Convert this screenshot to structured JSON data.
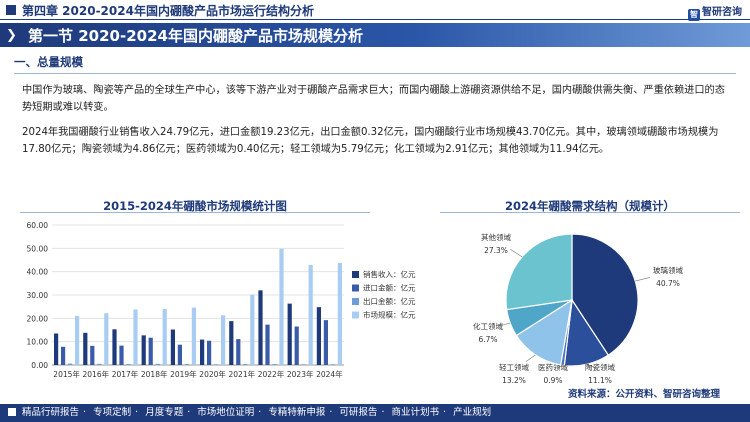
{
  "header": {
    "chapter_title": "第四章  2020-2024年国内硼酸产品市场运行结构分析",
    "logo_text": "智研咨询",
    "logo_mark": "智"
  },
  "section": {
    "title": "第一节 2020-2024年国内硼酸产品市场规模分析",
    "chevron": "❯"
  },
  "subsection": {
    "title": "一、总量规模"
  },
  "body": {
    "paragraph1": "中国作为玻璃、陶瓷等产品的全球生产中心，该等下游产业对于硼酸产品需求巨大；而国内硼酸上游硼资源供给不足，国内硼酸供需失衡、严重依赖进口的态势短期或难以转变。",
    "paragraph2": "2024年我国硼酸行业销售收入24.79亿元，进口金额19.23亿元，出口金额0.32亿元，国内硼酸行业市场规模43.70亿元。其中，玻璃领域硼酸市场规模为17.80亿元；陶瓷领域为4.86亿元；医药领域为0.40亿元；轻工领域为5.79亿元；化工领域为2.91亿元；其他领域为11.94亿元。"
  },
  "chart_data": [
    {
      "type": "bar",
      "title": "2015-2024年硼酸市场规模统计图",
      "categories": [
        "2015年",
        "2016年",
        "2017年",
        "2018年",
        "2019年",
        "2020年",
        "2021年",
        "2022年",
        "2023年",
        "2024年"
      ],
      "ylim": [
        0,
        60
      ],
      "yticks": [
        "0.00",
        "10.00",
        "20.00",
        "30.00",
        "40.00",
        "50.00",
        "60.00"
      ],
      "grid": true,
      "legend_position": "right",
      "series": [
        {
          "name": "销售收入：亿元",
          "color": "#1f3a7a",
          "values": [
            13.5,
            13.8,
            15.3,
            12.7,
            15.2,
            10.9,
            18.8,
            32.0,
            26.3,
            24.79
          ]
        },
        {
          "name": "进口金额：亿元",
          "color": "#3a5ca8",
          "values": [
            7.8,
            8.2,
            8.3,
            11.7,
            8.7,
            10.4,
            11.1,
            17.3,
            16.5,
            19.23
          ]
        },
        {
          "name": "出口金额：亿元",
          "color": "#6f9bd8",
          "values": [
            0.6,
            0.5,
            0.4,
            0.5,
            0.4,
            0.3,
            0.4,
            0.4,
            0.3,
            0.32
          ]
        },
        {
          "name": "市场规模：亿元",
          "color": "#a9cdf2",
          "values": [
            21.0,
            22.2,
            23.8,
            24.0,
            24.6,
            21.3,
            30.2,
            49.8,
            42.9,
            43.7
          ]
        }
      ]
    },
    {
      "type": "pie",
      "title": "2024年硼酸需求结构（规模计）",
      "slices": [
        {
          "label": "玻璃领域",
          "value": 40.7,
          "pct": "40.7%",
          "color": "#1f3a7a"
        },
        {
          "label": "陶瓷领域",
          "value": 11.1,
          "pct": "11.1%",
          "color": "#2b4f9a"
        },
        {
          "label": "医药领域",
          "value": 0.9,
          "pct": "0.9%",
          "color": "#4a74c0"
        },
        {
          "label": "轻工领域",
          "value": 13.2,
          "pct": "13.2%",
          "color": "#8fc3ea"
        },
        {
          "label": "化工领域",
          "value": 6.7,
          "pct": "6.7%",
          "color": "#4fa6c9"
        },
        {
          "label": "其他领域",
          "value": 27.3,
          "pct": "27.3%",
          "color": "#6cc3d0"
        }
      ]
    }
  ],
  "source": "资料来源：公开资料、智研咨询整理",
  "footer": {
    "items": [
      "精品行研报告",
      "专项定制",
      "月度专题",
      "市场地位证明",
      "专精特新申报",
      "可研报告",
      "商业计划书",
      "产业规划"
    ],
    "separator": "·"
  }
}
